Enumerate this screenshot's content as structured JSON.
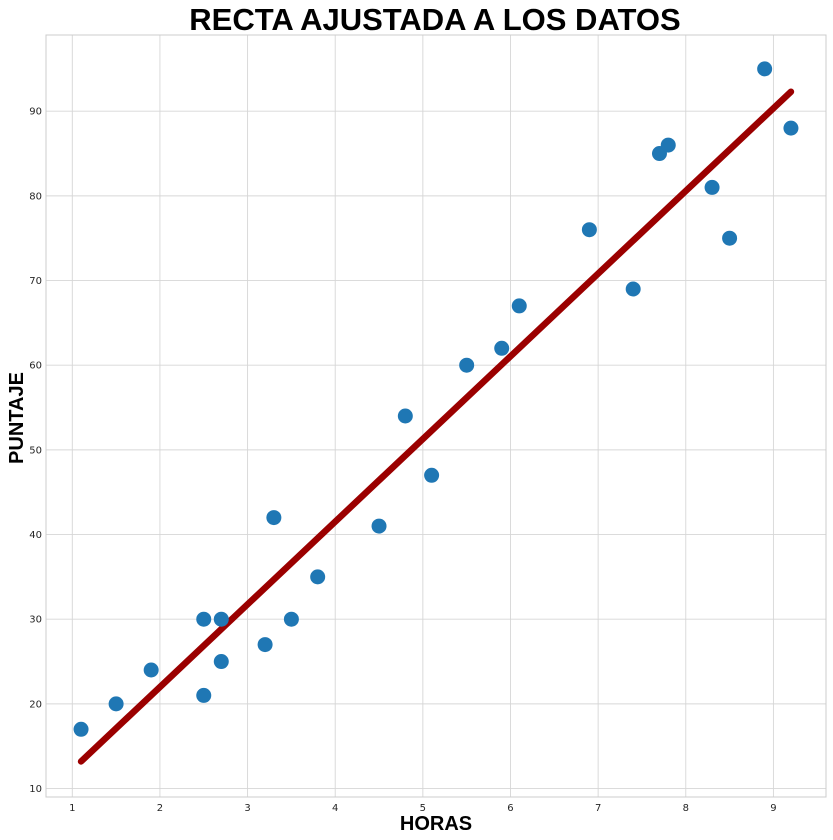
{
  "chart_data": {
    "type": "scatter",
    "title": "RECTA AJUSTADA A LOS DATOS",
    "xlabel": "HORAS",
    "ylabel": "PUNTAJE",
    "xlim": [
      0.7,
      9.6
    ],
    "ylim": [
      9.0,
      99.0
    ],
    "xticks": [
      1,
      2,
      3,
      4,
      5,
      6,
      7,
      8,
      9
    ],
    "yticks": [
      10,
      20,
      30,
      40,
      50,
      60,
      70,
      80,
      90
    ],
    "grid": true,
    "series": [
      {
        "kind": "points",
        "color": "#1f77b4",
        "x": [
          2.5,
          5.1,
          3.2,
          8.5,
          3.5,
          1.5,
          9.2,
          5.5,
          8.3,
          2.7,
          7.7,
          5.9,
          4.5,
          3.3,
          1.1,
          8.9,
          2.5,
          1.9,
          6.1,
          7.4,
          2.7,
          4.8,
          3.8,
          6.9,
          7.8
        ],
        "y": [
          21,
          47,
          27,
          75,
          30,
          20,
          88,
          60,
          81,
          25,
          85,
          62,
          41,
          42,
          17,
          95,
          30,
          24,
          67,
          69,
          30,
          54,
          35,
          76,
          86
        ]
      },
      {
        "kind": "fitted-line",
        "color": "#9b0000",
        "x": [
          1.1,
          9.2
        ],
        "y": [
          13.2,
          92.3
        ]
      }
    ]
  }
}
